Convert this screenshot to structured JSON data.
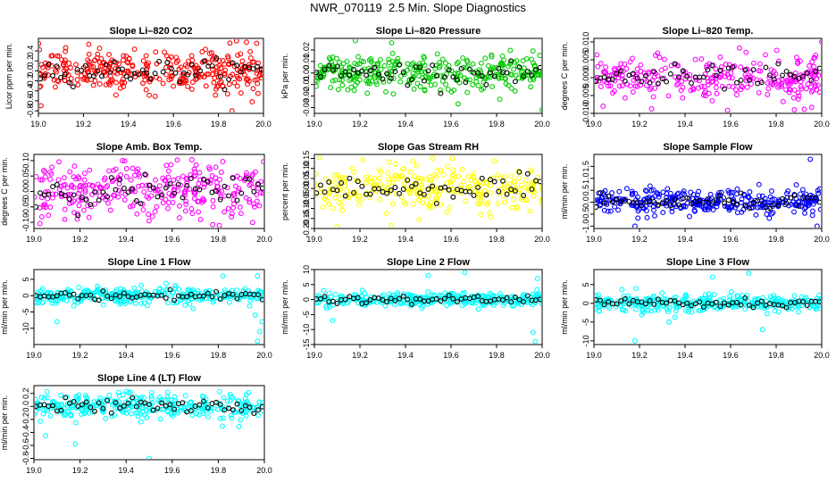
{
  "title": "NWR_070119  2.5 Min. Slope Diagnostics",
  "colors": {
    "highlight": "#000000",
    "axis": "#000000"
  },
  "chart_data": [
    {
      "type": "scatter",
      "title": "Slope Li–820 CO2",
      "ylabel": "Licor ppm per min.",
      "color": "#ff0000",
      "xlim": [
        19.0,
        20.0
      ],
      "ylim": [
        -0.85,
        0.65
      ],
      "xticks": [
        "19.0",
        "19.2",
        "19.4",
        "19.6",
        "19.8",
        "20.0"
      ],
      "yticks": [
        -0.8,
        -0.6,
        -0.4,
        -0.2,
        0.0,
        0.2,
        0.4
      ],
      "ytick_labels": [
        "-0.8",
        "-0.6",
        "-0.4",
        "-0.2",
        "0.0",
        "0.2",
        "0.4"
      ],
      "spread": 0.2,
      "n": 320,
      "outliers": [
        [
          19.88,
          0.6
        ],
        [
          19.97,
          0.55
        ],
        [
          19.86,
          -0.8
        ],
        [
          19.95,
          -0.62
        ]
      ]
    },
    {
      "type": "scatter",
      "title": "Slope Li–820 Pressure",
      "ylabel": "kPa per min.",
      "color": "#00cc00",
      "xlim": [
        19.0,
        20.0
      ],
      "ylim": [
        -0.035,
        0.03
      ],
      "xticks": [
        "19.0",
        "19.2",
        "19.4",
        "19.6",
        "19.8",
        "20.0"
      ],
      "yticks": [
        -0.03,
        -0.02,
        -0.01,
        0.0,
        0.01,
        0.02
      ],
      "ytick_labels": [
        "-0.03",
        "-0.02",
        "-0.01",
        "0.00",
        "0.01",
        "0.02"
      ],
      "spread": 0.008,
      "n": 320,
      "outliers": [
        [
          19.18,
          0.028
        ],
        [
          20.0,
          -0.032
        ],
        [
          19.95,
          -0.012
        ]
      ]
    },
    {
      "type": "scatter",
      "title": "Slope Li–820 Temp.",
      "ylabel": "degrees C per min.",
      "color": "#ff00ff",
      "xlim": [
        19.0,
        20.0
      ],
      "ylim": [
        -0.01,
        0.011
      ],
      "xticks": [
        "19.0",
        "19.2",
        "19.4",
        "19.6",
        "19.8",
        "20.0"
      ],
      "yticks": [
        -0.01,
        -0.005,
        0.0,
        0.005,
        0.01
      ],
      "ytick_labels": [
        "-0.010",
        "-0.005",
        "0.000",
        "0.005",
        "0.010"
      ],
      "spread": 0.003,
      "n": 280,
      "outliers": [
        [
          20.0,
          0.01
        ],
        [
          19.88,
          -0.009
        ],
        [
          19.04,
          -0.008
        ]
      ]
    },
    {
      "type": "scatter",
      "title": "Slope Amb. Box Temp.",
      "ylabel": "degrees C per min.",
      "color": "#ff00ff",
      "xlim": [
        19.0,
        20.0
      ],
      "ylim": [
        -0.12,
        0.12
      ],
      "xticks": [
        "19.0",
        "19.2",
        "19.4",
        "19.6",
        "19.8",
        "20.0"
      ],
      "yticks": [
        -0.1,
        -0.05,
        0.0,
        0.05,
        0.1
      ],
      "ytick_labels": [
        "-0.10",
        "-0.05",
        "0.00",
        "0.05",
        "0.10"
      ],
      "spread": 0.045,
      "n": 300,
      "outliers": []
    },
    {
      "type": "scatter",
      "title": "Slope Gas Stream RH",
      "ylabel": "percent per min.",
      "color": "#ffff00",
      "xlim": [
        19.0,
        20.0
      ],
      "ylim": [
        -0.2,
        0.17
      ],
      "xticks": [
        "19.0",
        "19.2",
        "19.4",
        "19.6",
        "19.8",
        "20.0"
      ],
      "yticks": [
        -0.2,
        -0.15,
        -0.1,
        -0.05,
        0.0,
        0.05,
        0.1,
        0.15
      ],
      "ytick_labels": [
        "-0.20",
        "-0.15",
        "-0.10",
        "-0.05",
        "0.00",
        "0.05",
        "0.10",
        "0.15"
      ],
      "spread": 0.055,
      "n": 280,
      "outliers": [
        [
          19.1,
          -0.19
        ],
        [
          19.52,
          0.15
        ]
      ]
    },
    {
      "type": "scatter",
      "title": "Slope Sample Flow",
      "ylabel": "ml/min per min.",
      "color": "#0000ff",
      "xlim": [
        19.0,
        20.0
      ],
      "ylim": [
        -1.1,
        2.0
      ],
      "xticks": [
        "19.0",
        "19.2",
        "19.4",
        "19.6",
        "19.8",
        "20.0"
      ],
      "yticks": [
        -1.0,
        -0.5,
        0.0,
        0.5,
        1.0,
        1.5
      ],
      "ytick_labels": [
        "-1.0",
        "-0.5",
        "0.0",
        "0.5",
        "1.0",
        "1.5"
      ],
      "spread": 0.25,
      "n": 320,
      "outliers": [
        [
          19.95,
          1.8
        ],
        [
          19.18,
          -1.0
        ],
        [
          19.98,
          -1.0
        ]
      ]
    },
    {
      "type": "scatter",
      "title": "Slope Line 1 Flow",
      "ylabel": "ml/min per min.",
      "color": "#00ffff",
      "xlim": [
        19.0,
        20.0
      ],
      "ylim": [
        -15,
        8
      ],
      "xticks": [
        "19.0",
        "19.2",
        "19.4",
        "19.6",
        "19.8",
        "20.0"
      ],
      "yticks": [
        -10,
        -5,
        0,
        5
      ],
      "ytick_labels": [
        "-10",
        "-5",
        "0",
        "5"
      ],
      "spread": 1.2,
      "n": 320,
      "outliers": [
        [
          19.97,
          -14
        ],
        [
          19.98,
          -11
        ],
        [
          19.99,
          -8
        ],
        [
          19.96,
          -6
        ],
        [
          19.97,
          6
        ],
        [
          19.82,
          6
        ],
        [
          19.1,
          -8
        ]
      ]
    },
    {
      "type": "scatter",
      "title": "Slope Line 2 Flow",
      "ylabel": "ml/min per min.",
      "color": "#00ffff",
      "xlim": [
        19.0,
        20.0
      ],
      "ylim": [
        -15,
        10
      ],
      "xticks": [
        "19.0",
        "19.2",
        "19.4",
        "19.6",
        "19.8",
        "20.0"
      ],
      "yticks": [
        -15,
        -10,
        -5,
        0,
        5,
        10
      ],
      "ytick_labels": [
        "-15",
        "-10",
        "-5",
        "0",
        "5",
        "10"
      ],
      "spread": 1.2,
      "n": 320,
      "outliers": [
        [
          19.97,
          -14
        ],
        [
          19.96,
          -11
        ],
        [
          19.98,
          7
        ],
        [
          19.5,
          8
        ],
        [
          19.66,
          9
        ],
        [
          19.08,
          -7
        ]
      ]
    },
    {
      "type": "scatter",
      "title": "Slope Line 3 Flow",
      "ylabel": "ml/min per min.",
      "color": "#00ffff",
      "xlim": [
        19.0,
        20.0
      ],
      "ylim": [
        -11,
        9
      ],
      "xticks": [
        "19.0",
        "19.2",
        "19.4",
        "19.6",
        "19.8",
        "20.0"
      ],
      "yticks": [
        -10,
        -5,
        0,
        5
      ],
      "ytick_labels": [
        "-10",
        "-5",
        "0",
        "5"
      ],
      "spread": 1.1,
      "n": 320,
      "outliers": [
        [
          19.18,
          -10
        ],
        [
          19.33,
          -5
        ],
        [
          19.74,
          -7
        ],
        [
          19.68,
          8
        ],
        [
          19.52,
          7
        ]
      ]
    },
    {
      "type": "scatter",
      "title": "Slope Line 4 (LT) Flow",
      "ylabel": "ml/min per min.",
      "color": "#00ffff",
      "xlim": [
        19.0,
        20.0
      ],
      "ylim": [
        -0.82,
        0.32
      ],
      "xticks": [
        "19.0",
        "19.2",
        "19.4",
        "19.6",
        "19.8",
        "20.0"
      ],
      "yticks": [
        -0.8,
        -0.6,
        -0.4,
        -0.2,
        0.0,
        0.2
      ],
      "ytick_labels": [
        "-0.8",
        "-0.6",
        "-0.4",
        "-0.2",
        "0.0",
        "0.2"
      ],
      "spread": 0.1,
      "n": 320,
      "outliers": [
        [
          19.5,
          -0.8
        ],
        [
          19.18,
          -0.58
        ],
        [
          19.05,
          -0.45
        ]
      ]
    }
  ]
}
